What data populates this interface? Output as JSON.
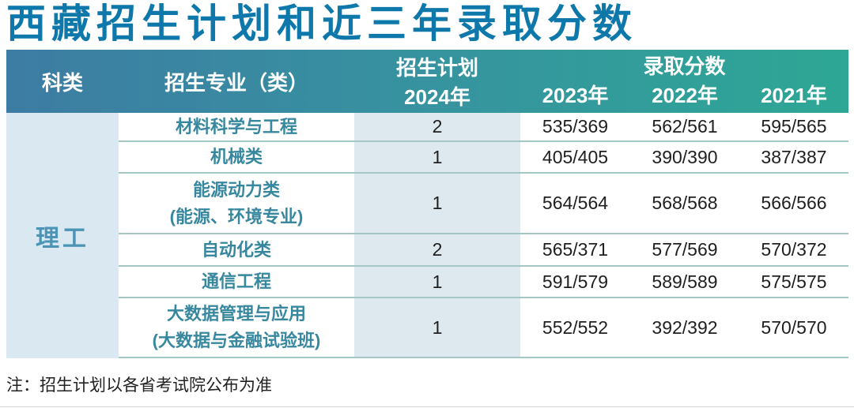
{
  "title": "西藏招生计划和近三年录取分数",
  "note": "注：招生计划以各省考试院公布为准",
  "colors": {
    "title_text": "#0f78ab",
    "header_gradient_left": "#3d7ca3",
    "header_gradient_right": "#2ea795",
    "header_text": "#ffffff",
    "category_cell_bg": "#d9e8f1",
    "plan_column_bg": "#dde9ef",
    "major_text": "#37889e",
    "category_text": "#4b94b6",
    "row_divider": "#a6c6c3",
    "value_text": "#202020"
  },
  "table": {
    "header": {
      "category": "科类",
      "major": "招生专业（类）",
      "plan_group": "招生计划",
      "plan_year": "2024年",
      "score_group": "录取分数",
      "score_years": [
        "2023年",
        "2022年",
        "2021年"
      ]
    },
    "category_value": "理工",
    "rows": [
      {
        "major_lines": [
          "材料科学与工程"
        ],
        "plan": "2",
        "scores": [
          "535/369",
          "562/561",
          "595/565"
        ]
      },
      {
        "major_lines": [
          "机械类"
        ],
        "plan": "1",
        "scores": [
          "405/405",
          "390/390",
          "387/387"
        ]
      },
      {
        "major_lines": [
          "能源动力类",
          "(能源、环境专业)"
        ],
        "plan": "1",
        "scores": [
          "564/564",
          "568/568",
          "566/566"
        ]
      },
      {
        "major_lines": [
          "自动化类"
        ],
        "plan": "2",
        "scores": [
          "565/371",
          "577/569",
          "570/372"
        ]
      },
      {
        "major_lines": [
          "通信工程"
        ],
        "plan": "1",
        "scores": [
          "591/579",
          "589/589",
          "575/575"
        ]
      },
      {
        "major_lines": [
          "大数据管理与应用",
          "(大数据与金融试验班)"
        ],
        "plan": "1",
        "scores": [
          "552/552",
          "392/392",
          "570/570"
        ]
      }
    ]
  }
}
